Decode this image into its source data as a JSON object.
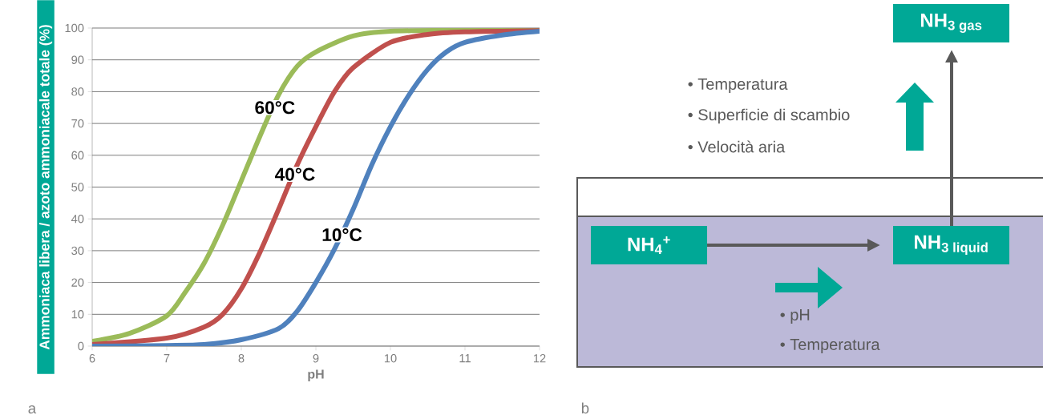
{
  "chart_data": [
    {
      "type": "line",
      "xlabel": "pH",
      "ylabel": "Ammoniaca libera / azoto ammoniacale totale (%)",
      "xlim": [
        6,
        12
      ],
      "ylim": [
        0,
        100
      ],
      "xticks": [
        6,
        7,
        8,
        9,
        10,
        11,
        12
      ],
      "yticks": [
        0,
        10,
        20,
        30,
        40,
        50,
        60,
        70,
        80,
        90,
        100
      ],
      "grid": "y",
      "marker": "none",
      "line_style": "solid",
      "series": [
        {
          "color": "#9bbb59",
          "x": [
            6,
            6.5,
            7,
            7.25,
            7.5,
            7.75,
            8,
            8.25,
            8.5,
            8.75,
            9,
            9.5,
            10,
            11,
            12
          ],
          "values": [
            1.5,
            4,
            9.5,
            17,
            26,
            38,
            52,
            66,
            79,
            88,
            92.5,
            97.5,
            99,
            99.3,
            99.3
          ]
        },
        {
          "color": "#c0504d",
          "x": [
            6,
            7,
            7.5,
            7.75,
            8,
            8.25,
            8.5,
            8.75,
            9,
            9.25,
            9.5,
            10,
            10.5,
            11,
            12
          ],
          "values": [
            0.5,
            2.5,
            6,
            10,
            18,
            29.5,
            43,
            57,
            69,
            80,
            87.5,
            95.5,
            98,
            98.8,
            99.2
          ]
        },
        {
          "color": "#4f81bd",
          "x": [
            6,
            7,
            7.5,
            8,
            8.5,
            8.75,
            9,
            9.25,
            9.5,
            9.75,
            10,
            10.25,
            10.5,
            10.75,
            11,
            11.5,
            12
          ],
          "values": [
            0,
            0.2,
            0.5,
            2,
            5.5,
            11,
            20,
            30.5,
            43,
            57,
            69,
            79,
            87,
            92.5,
            95.5,
            97.8,
            99
          ]
        }
      ],
      "annotations": [
        {
          "text": "60°C",
          "x": 8.45,
          "y": 75
        },
        {
          "text": "40°C",
          "x": 8.72,
          "y": 54
        },
        {
          "text": "10°C",
          "x": 9.35,
          "y": 35
        },
        "a"
      ]
    },
    {
      "type": "other",
      "annotations": [
        "NH$_{4}$$^{+}$",
        "NH$_{3 liquid}$",
        "NH$_{3 gas}$",
        "• Temperatura",
        "• Superficie di scambio",
        "• Velocità aria",
        "• pH",
        "• Temperatura",
        "b"
      ]
    }
  ]
}
